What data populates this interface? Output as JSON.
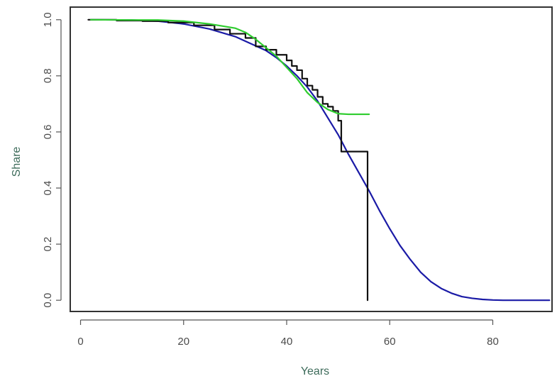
{
  "chart_data": {
    "type": "line",
    "title": "",
    "xlabel": "Years",
    "ylabel": "Share",
    "xlim": [
      -2,
      91.5
    ],
    "ylim": [
      -0.04,
      1.045
    ],
    "xticks": [
      0,
      20,
      40,
      60,
      80
    ],
    "yticks": [
      0.0,
      0.2,
      0.4,
      0.6,
      0.8,
      1.0
    ],
    "xtick_labels": [
      "0",
      "20",
      "40",
      "60",
      "80"
    ],
    "ytick_labels": [
      "0.0",
      "0.2",
      "0.4",
      "0.6",
      "0.8",
      "1.0"
    ],
    "grid": false,
    "series": [
      {
        "color": "#1a1aa6",
        "stroke_width": 2.2,
        "x": [
          2,
          10,
          15,
          20,
          25,
          30,
          33,
          36,
          38,
          40,
          42,
          44,
          46,
          48,
          50,
          52,
          54,
          56,
          58,
          60,
          62,
          64,
          66,
          68,
          70,
          72,
          74,
          76,
          78,
          80,
          82,
          85,
          88,
          91
        ],
        "y": [
          1.0,
          0.999,
          0.995,
          0.985,
          0.967,
          0.94,
          0.915,
          0.89,
          0.865,
          0.835,
          0.8,
          0.76,
          0.71,
          0.65,
          0.59,
          0.52,
          0.455,
          0.39,
          0.32,
          0.255,
          0.195,
          0.145,
          0.1,
          0.066,
          0.042,
          0.025,
          0.013,
          0.007,
          0.003,
          0.001,
          0.0,
          0.0,
          0.0,
          0.0
        ]
      },
      {
        "color": "#111111",
        "stroke_width": 2.2,
        "step": true,
        "x": [
          1.5,
          7,
          12,
          17,
          22,
          26,
          29,
          32,
          34,
          36,
          38,
          40,
          41,
          42,
          43,
          44,
          45,
          46,
          47,
          48,
          49,
          50,
          50.6,
          55.2,
          55.7
        ],
        "y": [
          1.0,
          0.997,
          0.995,
          0.99,
          0.98,
          0.965,
          0.95,
          0.935,
          0.905,
          0.893,
          0.875,
          0.855,
          0.835,
          0.82,
          0.79,
          0.765,
          0.75,
          0.725,
          0.7,
          0.69,
          0.675,
          0.64,
          0.53,
          0.53,
          0.0
        ]
      },
      {
        "color": "#2ecc2e",
        "stroke_width": 2.2,
        "x": [
          2,
          10,
          15,
          20,
          25,
          30,
          32,
          34,
          36,
          38,
          40,
          42,
          44,
          46,
          48,
          50,
          52,
          54,
          56
        ],
        "y": [
          1.0,
          0.999,
          0.999,
          0.995,
          0.985,
          0.97,
          0.955,
          0.93,
          0.9,
          0.87,
          0.83,
          0.79,
          0.74,
          0.705,
          0.68,
          0.665,
          0.663,
          0.663,
          0.663
        ]
      }
    ]
  }
}
